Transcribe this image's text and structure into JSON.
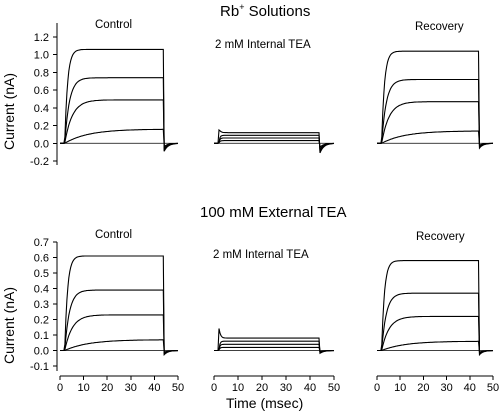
{
  "figure": {
    "title_main": "Rb",
    "title_sup": "+",
    "title_rest": " Solutions",
    "mid_title": "100 mM External TEA",
    "ylabel": "Current (nA)",
    "xlabel": "Time (msec)"
  },
  "chart_data": [
    {
      "type": "line",
      "panel": "top-left",
      "title": "Control",
      "ylabel": "Current (nA)",
      "ylim": [
        -0.2,
        1.2
      ],
      "yticks": [
        "1.2",
        "1.0",
        "0.8",
        "0.6",
        "0.4",
        "0.2",
        "0.0",
        "-0.2"
      ],
      "ytick_values": [
        1.2,
        1.0,
        0.8,
        0.6,
        0.4,
        0.2,
        0.0,
        -0.2
      ],
      "pulse_ms": [
        2,
        44
      ],
      "steady_values": [
        1.06,
        0.74,
        0.49,
        0.16
      ],
      "tail_min": -0.1
    },
    {
      "type": "line",
      "panel": "top-middle",
      "title": "2 mM Internal TEA",
      "pulse_ms": [
        2,
        44
      ],
      "ylim": [
        -0.2,
        1.2
      ],
      "steady_values": [
        0.12,
        0.09,
        0.06,
        0.03
      ],
      "tail_min": -0.12
    },
    {
      "type": "line",
      "panel": "top-right",
      "title": "Recovery",
      "pulse_ms": [
        2,
        44
      ],
      "ylim": [
        -0.2,
        1.2
      ],
      "steady_values": [
        1.04,
        0.72,
        0.47,
        0.14
      ],
      "tail_min": -0.06
    },
    {
      "type": "line",
      "panel": "bottom-left",
      "title": "Control",
      "ylabel": "Current (nA)",
      "xlabel": "Time (msec)",
      "ylim": [
        -0.1,
        0.7
      ],
      "yticks": [
        "0.7",
        "0.6",
        "0.5",
        "0.4",
        "0.3",
        "0.2",
        "0.1",
        "0.0",
        "-0.1"
      ],
      "ytick_values": [
        0.7,
        0.6,
        0.5,
        0.4,
        0.3,
        0.2,
        0.1,
        0.0,
        -0.1
      ],
      "xlim": [
        0,
        50
      ],
      "xticks": [
        "0",
        "10",
        "20",
        "30",
        "40",
        "50"
      ],
      "pulse_ms": [
        2,
        44
      ],
      "steady_values": [
        0.61,
        0.39,
        0.23,
        0.07
      ],
      "tail_min": -0.03
    },
    {
      "type": "line",
      "panel": "bottom-middle",
      "title": "2 mM Internal TEA",
      "xlim": [
        0,
        50
      ],
      "xticks": [
        "0",
        "10",
        "20",
        "30",
        "40",
        "50"
      ],
      "pulse_ms": [
        2,
        44
      ],
      "ylim": [
        -0.1,
        0.7
      ],
      "steady_values": [
        0.08,
        0.06,
        0.04,
        0.02
      ],
      "tail_min": -0.02
    },
    {
      "type": "line",
      "panel": "bottom-right",
      "title": "Recovery",
      "xlim": [
        0,
        50
      ],
      "xticks": [
        "0",
        "10",
        "20",
        "30",
        "40",
        "50"
      ],
      "pulse_ms": [
        2,
        44
      ],
      "ylim": [
        -0.1,
        0.7
      ],
      "steady_values": [
        0.58,
        0.37,
        0.22,
        0.06
      ],
      "tail_min": -0.03
    }
  ]
}
